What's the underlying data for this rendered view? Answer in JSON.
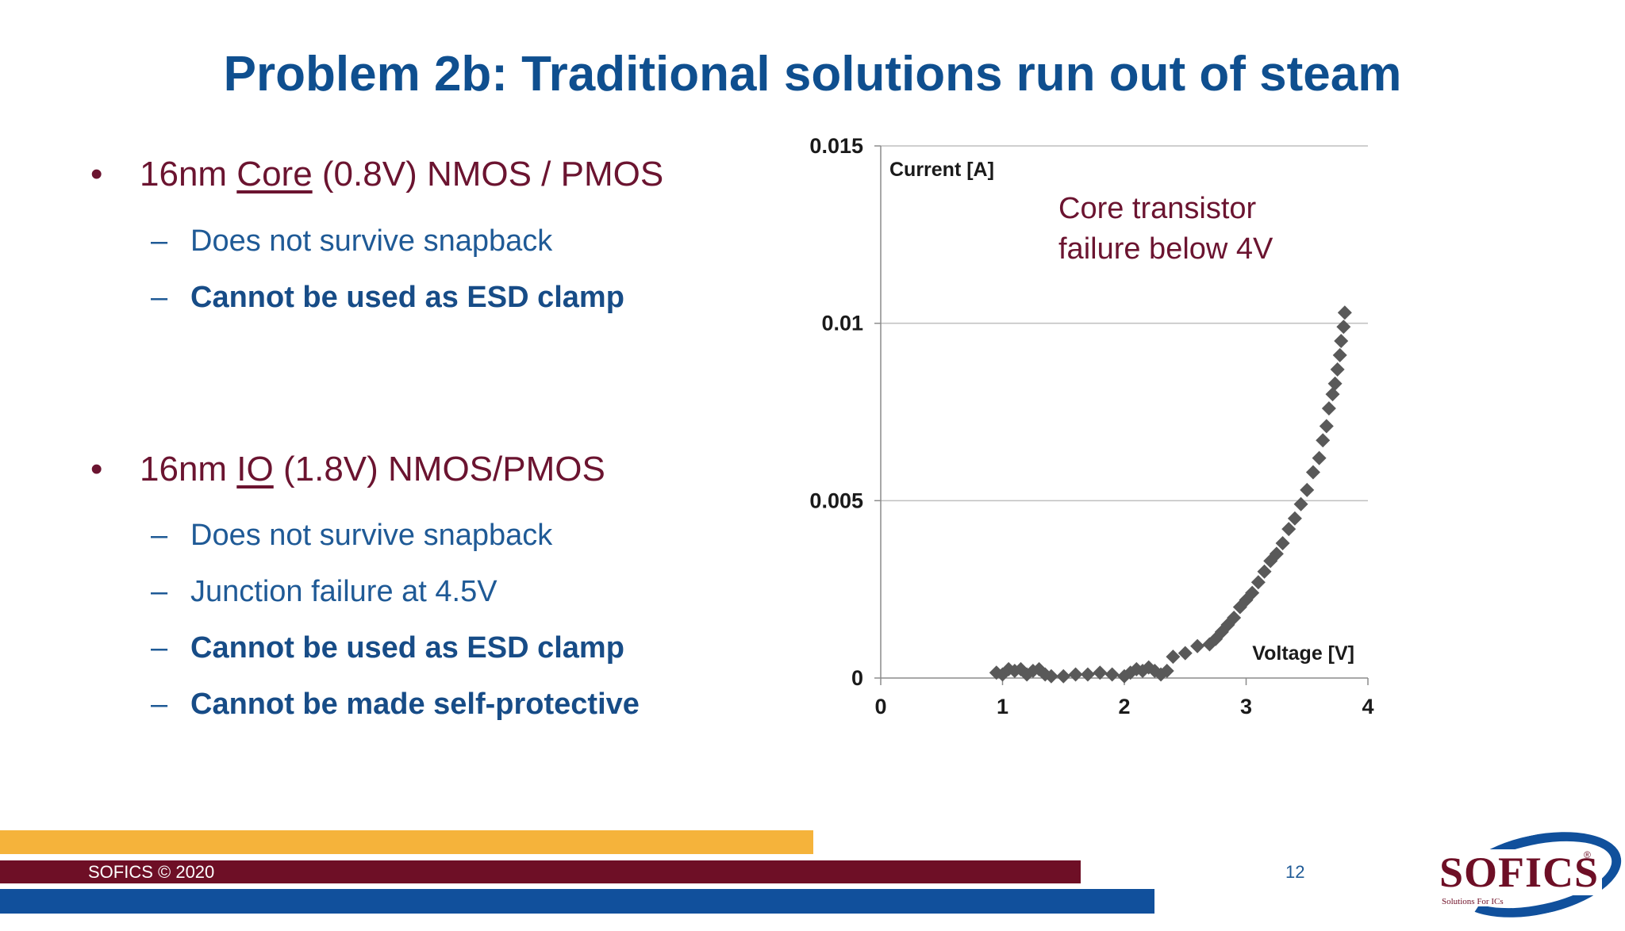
{
  "title": "Problem 2b: Traditional solutions run out of steam",
  "bullets": [
    {
      "pre": "16nm ",
      "underlined": "Core",
      "post": " (0.8V) NMOS / PMOS",
      "subs": [
        {
          "text": "Does not survive snapback",
          "bold": false
        },
        {
          "text": "Cannot be used as ESD clamp",
          "bold": true
        }
      ]
    },
    {
      "pre": "16nm ",
      "underlined": "IO",
      "post": " (1.8V) NMOS/PMOS",
      "subs": [
        {
          "text": "Does not survive snapback",
          "bold": false
        },
        {
          "text": "Junction failure at 4.5V",
          "bold": false
        },
        {
          "text": "Cannot be used as ESD clamp",
          "bold": true
        },
        {
          "text": "Cannot be made self-protective",
          "bold": true
        }
      ]
    }
  ],
  "bullet_symbol": "•",
  "dash_symbol": "–",
  "annotation": [
    "Core transistor",
    "failure below 4V"
  ],
  "chart_data": {
    "type": "scatter",
    "title": "",
    "xlabel": "Voltage [V]",
    "ylabel": "Current [A]",
    "xlim": [
      0,
      4
    ],
    "ylim": [
      0,
      0.015
    ],
    "x_ticks": [
      "0",
      "1",
      "2",
      "3",
      "4"
    ],
    "y_ticks": [
      "0",
      "0.005",
      "0.01",
      "0.015"
    ],
    "grid": "horizontal",
    "marker": "diamond",
    "marker_color": "#595959",
    "points": [
      [
        0.95,
        0.00015
      ],
      [
        1.0,
        0.0001
      ],
      [
        1.05,
        0.00025
      ],
      [
        1.1,
        0.0002
      ],
      [
        1.15,
        0.00025
      ],
      [
        1.2,
        0.0001
      ],
      [
        1.25,
        0.0002
      ],
      [
        1.3,
        0.00025
      ],
      [
        1.35,
        0.0001
      ],
      [
        1.4,
        5e-05
      ],
      [
        1.5,
        5e-05
      ],
      [
        1.6,
        0.0001
      ],
      [
        1.7,
        0.0001
      ],
      [
        1.8,
        0.00015
      ],
      [
        1.9,
        0.0001
      ],
      [
        2.0,
        5e-05
      ],
      [
        2.05,
        0.00015
      ],
      [
        2.1,
        0.00025
      ],
      [
        2.15,
        0.0002
      ],
      [
        2.2,
        0.0003
      ],
      [
        2.25,
        0.0002
      ],
      [
        2.3,
        0.0001
      ],
      [
        2.35,
        0.0002
      ],
      [
        2.4,
        0.0006
      ],
      [
        2.5,
        0.0007
      ],
      [
        2.6,
        0.0009
      ],
      [
        2.7,
        0.00095
      ],
      [
        2.75,
        0.0011
      ],
      [
        2.8,
        0.0013
      ],
      [
        2.85,
        0.0015
      ],
      [
        2.9,
        0.0017
      ],
      [
        2.95,
        0.002
      ],
      [
        3.0,
        0.0022
      ],
      [
        3.05,
        0.0024
      ],
      [
        3.1,
        0.0027
      ],
      [
        3.15,
        0.003
      ],
      [
        3.2,
        0.0033
      ],
      [
        3.25,
        0.0035
      ],
      [
        3.3,
        0.0038
      ],
      [
        3.35,
        0.0042
      ],
      [
        3.4,
        0.0045
      ],
      [
        3.45,
        0.0049
      ],
      [
        3.5,
        0.0053
      ],
      [
        3.55,
        0.0058
      ],
      [
        3.6,
        0.0062
      ],
      [
        3.63,
        0.0067
      ],
      [
        3.66,
        0.0071
      ],
      [
        3.68,
        0.0076
      ],
      [
        3.71,
        0.008
      ],
      [
        3.73,
        0.0083
      ],
      [
        3.75,
        0.0087
      ],
      [
        3.77,
        0.0091
      ],
      [
        3.78,
        0.0095
      ],
      [
        3.8,
        0.0099
      ],
      [
        3.81,
        0.0103
      ]
    ]
  },
  "footer": {
    "copyright": "SOFICS © 2020",
    "page": "12",
    "logo_word": "SOFICS",
    "logo_tagline": "Solutions For ICs",
    "logo_reg": "®",
    "colors": {
      "orange": "#f5b33b",
      "maroon": "#6e0f26",
      "blue": "#11509c"
    }
  }
}
